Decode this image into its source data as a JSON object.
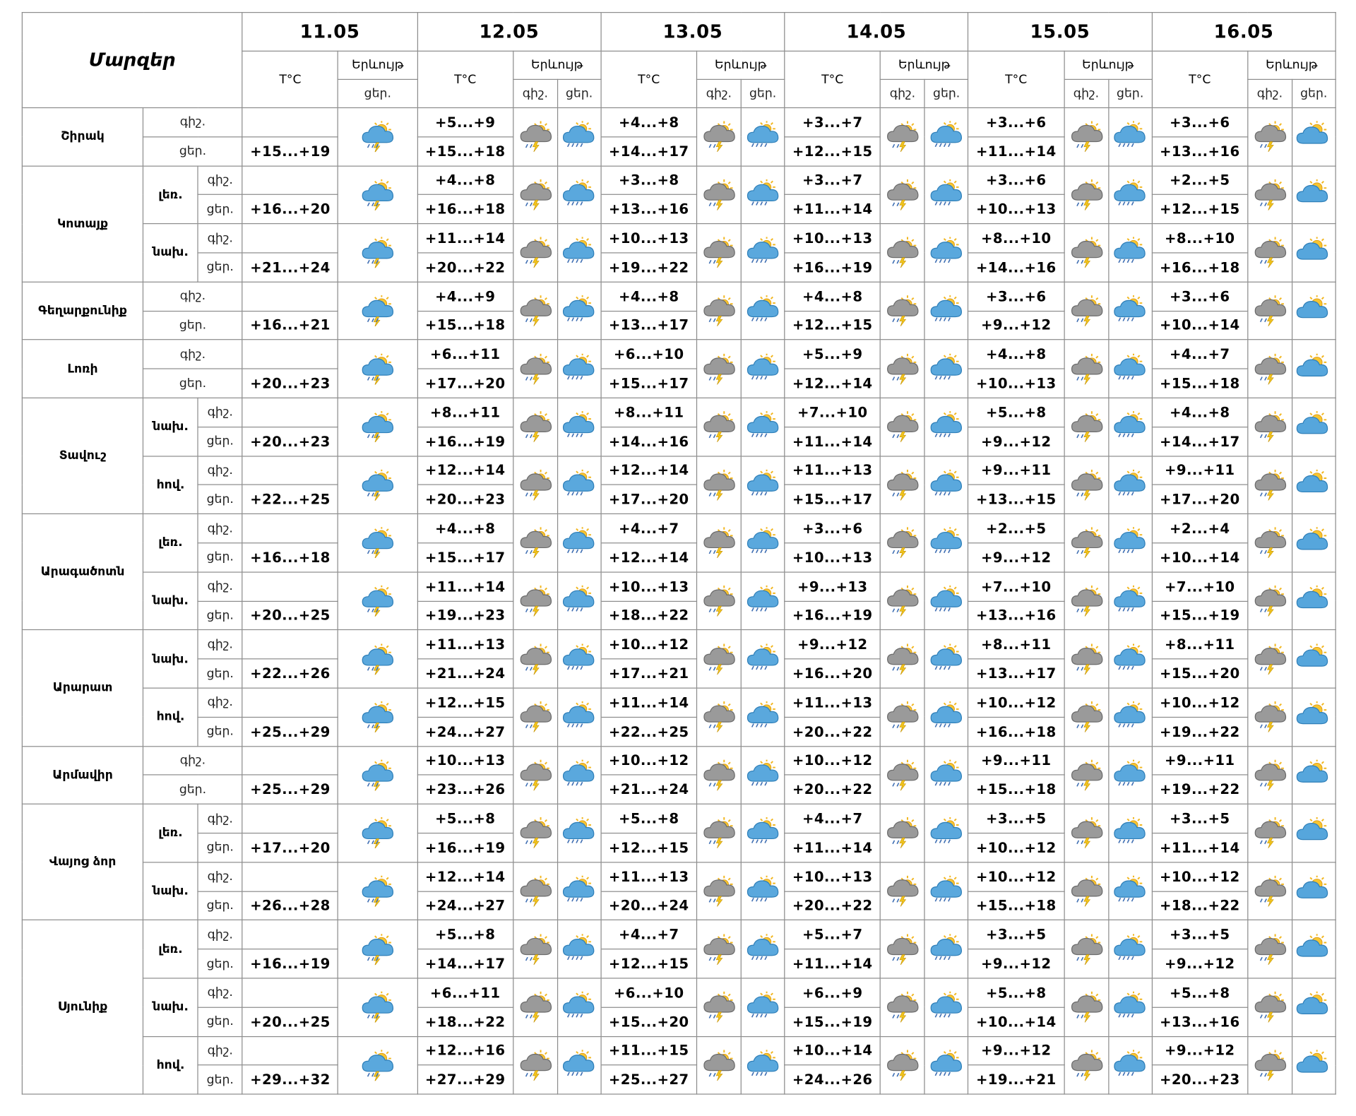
{
  "header": {
    "title": "Մարզեր",
    "temp_label": "T°C",
    "phen_label": "Երևույթ",
    "night_label": "գիշ.",
    "day_label": "ցեր.",
    "dates": [
      "11.05",
      "12.05",
      "13.05",
      "14.05",
      "15.05",
      "16.05"
    ]
  },
  "regions": [
    {
      "name": "Շիրակ",
      "subs": [
        {
          "name": "",
          "night": [
            "",
            "+5...+9",
            "+4...+8",
            "+3...+7",
            "+3...+6",
            "+3...+6"
          ],
          "day": [
            "+15...+19",
            "+15...+18",
            "+14...+17",
            "+12...+15",
            "+11...+14",
            "+13...+16"
          ]
        }
      ]
    },
    {
      "name": "Կոտայք",
      "subs": [
        {
          "name": "լեռ.",
          "night": [
            "",
            "+4...+8",
            "+3...+8",
            "+3...+7",
            "+3...+6",
            "+2...+5"
          ],
          "day": [
            "+16...+20",
            "+16...+18",
            "+13...+16",
            "+11...+14",
            "+10...+13",
            "+12...+15"
          ]
        },
        {
          "name": "նախ.",
          "night": [
            "",
            "+11...+14",
            "+10...+13",
            "+10...+13",
            "+8...+10",
            "+8...+10"
          ],
          "day": [
            "+21...+24",
            "+20...+22",
            "+19...+22",
            "+16...+19",
            "+14...+16",
            "+16...+18"
          ]
        }
      ]
    },
    {
      "name": "Գեղարքունիք",
      "subs": [
        {
          "name": "",
          "night": [
            "",
            "+4...+9",
            "+4...+8",
            "+4...+8",
            "+3...+6",
            "+3...+6"
          ],
          "day": [
            "+16...+21",
            "+15...+18",
            "+13...+17",
            "+12...+15",
            "+9...+12",
            "+10...+14"
          ]
        }
      ]
    },
    {
      "name": "Լոռի",
      "subs": [
        {
          "name": "",
          "night": [
            "",
            "+6...+11",
            "+6...+10",
            "+5...+9",
            "+4...+8",
            "+4...+7"
          ],
          "day": [
            "+20...+23",
            "+17...+20",
            "+15...+17",
            "+12...+14",
            "+10...+13",
            "+15...+18"
          ]
        }
      ]
    },
    {
      "name": "Տավուշ",
      "subs": [
        {
          "name": "նախ.",
          "night": [
            "",
            "+8...+11",
            "+8...+11",
            "+7...+10",
            "+5...+8",
            "+4...+8"
          ],
          "day": [
            "+20...+23",
            "+16...+19",
            "+14...+16",
            "+11...+14",
            "+9...+12",
            "+14...+17"
          ]
        },
        {
          "name": "հով.",
          "night": [
            "",
            "+12...+14",
            "+12...+14",
            "+11...+13",
            "+9...+11",
            "+9...+11"
          ],
          "day": [
            "+22...+25",
            "+20...+23",
            "+17...+20",
            "+15...+17",
            "+13...+15",
            "+17...+20"
          ]
        }
      ]
    },
    {
      "name": "Արագածոտն",
      "subs": [
        {
          "name": "լեռ.",
          "night": [
            "",
            "+4...+8",
            "+4...+7",
            "+3...+6",
            "+2...+5",
            "+2...+4"
          ],
          "day": [
            "+16...+18",
            "+15...+17",
            "+12...+14",
            "+10...+13",
            "+9...+12",
            "+10...+14"
          ]
        },
        {
          "name": "նախ.",
          "night": [
            "",
            "+11...+14",
            "+10...+13",
            "+9...+13",
            "+7...+10",
            "+7...+10"
          ],
          "day": [
            "+20...+25",
            "+19...+23",
            "+18...+22",
            "+16...+19",
            "+13...+16",
            "+15...+19"
          ]
        }
      ]
    },
    {
      "name": "Արարատ",
      "subs": [
        {
          "name": "նախ.",
          "night": [
            "",
            "+11...+13",
            "+10...+12",
            "+9...+12",
            "+8...+11",
            "+8...+11"
          ],
          "day": [
            "+22...+26",
            "+21...+24",
            "+17...+21",
            "+16...+20",
            "+13...+17",
            "+15...+20"
          ]
        },
        {
          "name": "հով.",
          "night": [
            "",
            "+12...+15",
            "+11...+14",
            "+11...+13",
            "+10...+12",
            "+10...+12"
          ],
          "day": [
            "+25...+29",
            "+24...+27",
            "+22...+25",
            "+20...+22",
            "+16...+18",
            "+19...+22"
          ]
        }
      ]
    },
    {
      "name": "Արմավիր",
      "subs": [
        {
          "name": "",
          "night": [
            "",
            "+10...+13",
            "+10...+12",
            "+10...+12",
            "+9...+11",
            "+9...+11"
          ],
          "day": [
            "+25...+29",
            "+23...+26",
            "+21...+24",
            "+20...+22",
            "+15...+18",
            "+19...+22"
          ]
        }
      ]
    },
    {
      "name": "Վայոց ձոր",
      "subs": [
        {
          "name": "լեռ.",
          "night": [
            "",
            "+5...+8",
            "+5...+8",
            "+4...+7",
            "+3...+5",
            "+3...+5"
          ],
          "day": [
            "+17...+20",
            "+16...+19",
            "+12...+15",
            "+11...+14",
            "+10...+12",
            "+11...+14"
          ]
        },
        {
          "name": "նախ.",
          "night": [
            "",
            "+12...+14",
            "+11...+13",
            "+10...+13",
            "+10...+12",
            "+10...+12"
          ],
          "day": [
            "+26...+28",
            "+24...+27",
            "+20...+24",
            "+20...+22",
            "+15...+18",
            "+18...+22"
          ]
        }
      ]
    },
    {
      "name": "Սյունիք",
      "subs": [
        {
          "name": "լեռ.",
          "night": [
            "",
            "+5...+8",
            "+4...+7",
            "+5...+7",
            "+3...+5",
            "+3...+5"
          ],
          "day": [
            "+16...+19",
            "+14...+17",
            "+12...+15",
            "+11...+14",
            "+9...+12",
            "+9...+12"
          ]
        },
        {
          "name": "նախ.",
          "night": [
            "",
            "+6...+11",
            "+6...+10",
            "+6...+9",
            "+5...+8",
            "+5...+8"
          ],
          "day": [
            "+20...+25",
            "+18...+22",
            "+15...+20",
            "+15...+19",
            "+10...+14",
            "+13...+16"
          ]
        },
        {
          "name": "հով.",
          "night": [
            "",
            "+12...+16",
            "+11...+15",
            "+10...+14",
            "+9...+12",
            "+9...+12"
          ],
          "day": [
            "+29...+32",
            "+27...+29",
            "+25...+27",
            "+24...+26",
            "+19...+21",
            "+20...+23"
          ]
        }
      ]
    }
  ],
  "icons": {
    "day1": "sun-cloud-rain-thunder-icon",
    "night": "sun-grey-cloud-thunder-rain-icon",
    "day": "sun-blue-cloud-rain-icon",
    "day16": "sun-blue-cloud-icon"
  },
  "colors": {
    "border": "#8c8c8c",
    "cloud_blue": "#4f9fd6",
    "cloud_grey": "#8a8a8a",
    "sun": "#f2b61e"
  }
}
